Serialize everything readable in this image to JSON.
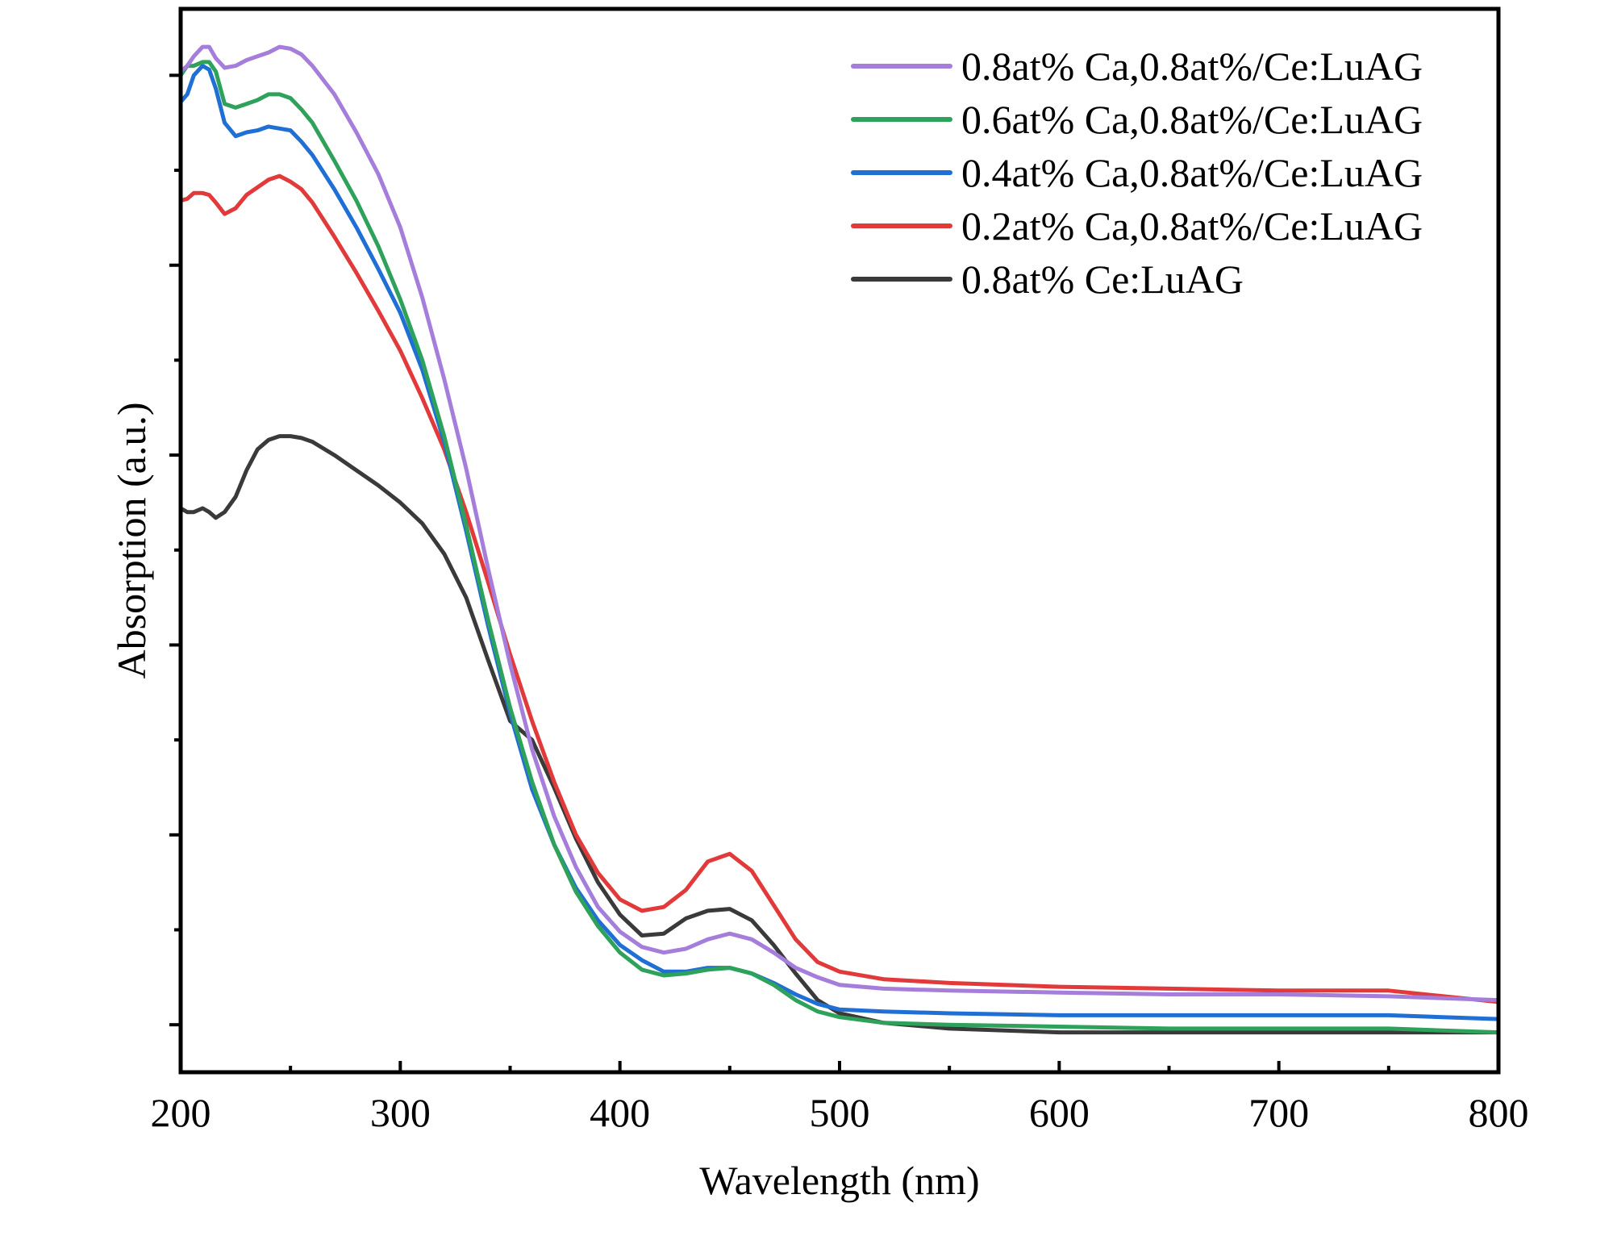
{
  "chart_data": {
    "type": "line",
    "title": "",
    "xlabel": "Wavelength (nm)",
    "ylabel": "Absorption (a.u.)",
    "xlim": [
      200,
      800
    ],
    "ylim": [
      -0.25,
      5.35
    ],
    "x_ticks": [
      200,
      300,
      400,
      500,
      600,
      700,
      800
    ],
    "x_tick_labels": [
      "200",
      "300",
      "400",
      "500",
      "600",
      "700",
      "800"
    ],
    "y_tick_labels_shown": false,
    "legend_position": "top-right",
    "series": [
      {
        "name": "0.8at% Ca,0.8at%/Ce:LuAG",
        "color": "#a57ddb",
        "points": [
          [
            200,
            5.02
          ],
          [
            203,
            5.05
          ],
          [
            206,
            5.1
          ],
          [
            210,
            5.15
          ],
          [
            213,
            5.15
          ],
          [
            216,
            5.09
          ],
          [
            220,
            5.04
          ],
          [
            225,
            5.05
          ],
          [
            230,
            5.08
          ],
          [
            235,
            5.1
          ],
          [
            240,
            5.12
          ],
          [
            245,
            5.15
          ],
          [
            250,
            5.14
          ],
          [
            255,
            5.11
          ],
          [
            260,
            5.05
          ],
          [
            270,
            4.9
          ],
          [
            280,
            4.7
          ],
          [
            290,
            4.48
          ],
          [
            300,
            4.2
          ],
          [
            310,
            3.83
          ],
          [
            320,
            3.4
          ],
          [
            330,
            2.93
          ],
          [
            340,
            2.4
          ],
          [
            350,
            1.9
          ],
          [
            360,
            1.45
          ],
          [
            370,
            1.1
          ],
          [
            380,
            0.83
          ],
          [
            390,
            0.62
          ],
          [
            400,
            0.49
          ],
          [
            410,
            0.41
          ],
          [
            420,
            0.38
          ],
          [
            430,
            0.4
          ],
          [
            440,
            0.45
          ],
          [
            450,
            0.48
          ],
          [
            460,
            0.45
          ],
          [
            470,
            0.38
          ],
          [
            480,
            0.3
          ],
          [
            490,
            0.25
          ],
          [
            500,
            0.21
          ],
          [
            520,
            0.19
          ],
          [
            550,
            0.18
          ],
          [
            600,
            0.17
          ],
          [
            650,
            0.16
          ],
          [
            700,
            0.16
          ],
          [
            750,
            0.15
          ],
          [
            800,
            0.13
          ]
        ]
      },
      {
        "name": "0.6at% Ca,0.8at%/Ce:LuAG",
        "color": "#2ea25a",
        "points": [
          [
            200,
            5.0
          ],
          [
            203,
            5.05
          ],
          [
            206,
            5.05
          ],
          [
            210,
            5.07
          ],
          [
            213,
            5.07
          ],
          [
            216,
            5.02
          ],
          [
            220,
            4.85
          ],
          [
            225,
            4.83
          ],
          [
            230,
            4.85
          ],
          [
            235,
            4.87
          ],
          [
            240,
            4.9
          ],
          [
            245,
            4.9
          ],
          [
            250,
            4.88
          ],
          [
            255,
            4.82
          ],
          [
            260,
            4.75
          ],
          [
            270,
            4.55
          ],
          [
            280,
            4.34
          ],
          [
            290,
            4.1
          ],
          [
            300,
            3.82
          ],
          [
            310,
            3.5
          ],
          [
            320,
            3.1
          ],
          [
            330,
            2.63
          ],
          [
            340,
            2.13
          ],
          [
            350,
            1.67
          ],
          [
            360,
            1.28
          ],
          [
            370,
            0.95
          ],
          [
            380,
            0.7
          ],
          [
            390,
            0.52
          ],
          [
            400,
            0.38
          ],
          [
            410,
            0.29
          ],
          [
            420,
            0.26
          ],
          [
            430,
            0.27
          ],
          [
            440,
            0.29
          ],
          [
            450,
            0.3
          ],
          [
            460,
            0.27
          ],
          [
            470,
            0.21
          ],
          [
            480,
            0.13
          ],
          [
            490,
            0.07
          ],
          [
            500,
            0.04
          ],
          [
            520,
            0.01
          ],
          [
            550,
            0.0
          ],
          [
            600,
            -0.01
          ],
          [
            650,
            -0.02
          ],
          [
            700,
            -0.02
          ],
          [
            750,
            -0.02
          ],
          [
            800,
            -0.04
          ]
        ]
      },
      {
        "name": "0.4at% Ca,0.8at%/Ce:LuAG",
        "color": "#1f6fd4",
        "points": [
          [
            200,
            4.86
          ],
          [
            203,
            4.9
          ],
          [
            206,
            5.0
          ],
          [
            210,
            5.05
          ],
          [
            213,
            5.03
          ],
          [
            216,
            4.93
          ],
          [
            220,
            4.75
          ],
          [
            225,
            4.68
          ],
          [
            230,
            4.7
          ],
          [
            235,
            4.71
          ],
          [
            240,
            4.73
          ],
          [
            245,
            4.72
          ],
          [
            250,
            4.71
          ],
          [
            255,
            4.65
          ],
          [
            260,
            4.58
          ],
          [
            270,
            4.4
          ],
          [
            280,
            4.2
          ],
          [
            290,
            3.98
          ],
          [
            300,
            3.75
          ],
          [
            310,
            3.45
          ],
          [
            320,
            3.07
          ],
          [
            330,
            2.6
          ],
          [
            340,
            2.1
          ],
          [
            350,
            1.64
          ],
          [
            360,
            1.24
          ],
          [
            370,
            0.95
          ],
          [
            380,
            0.72
          ],
          [
            390,
            0.55
          ],
          [
            400,
            0.42
          ],
          [
            410,
            0.34
          ],
          [
            420,
            0.28
          ],
          [
            430,
            0.28
          ],
          [
            440,
            0.3
          ],
          [
            450,
            0.3
          ],
          [
            460,
            0.27
          ],
          [
            470,
            0.22
          ],
          [
            480,
            0.16
          ],
          [
            490,
            0.11
          ],
          [
            500,
            0.08
          ],
          [
            520,
            0.07
          ],
          [
            550,
            0.06
          ],
          [
            600,
            0.05
          ],
          [
            650,
            0.05
          ],
          [
            700,
            0.05
          ],
          [
            750,
            0.05
          ],
          [
            800,
            0.03
          ]
        ]
      },
      {
        "name": "0.2at% Ca,0.8at%/Ce:LuAG",
        "color": "#e23a3a",
        "points": [
          [
            200,
            4.34
          ],
          [
            203,
            4.35
          ],
          [
            206,
            4.38
          ],
          [
            210,
            4.38
          ],
          [
            213,
            4.37
          ],
          [
            216,
            4.33
          ],
          [
            220,
            4.27
          ],
          [
            225,
            4.3
          ],
          [
            230,
            4.37
          ],
          [
            235,
            4.41
          ],
          [
            240,
            4.45
          ],
          [
            245,
            4.47
          ],
          [
            250,
            4.44
          ],
          [
            255,
            4.4
          ],
          [
            260,
            4.33
          ],
          [
            270,
            4.15
          ],
          [
            280,
            3.96
          ],
          [
            290,
            3.76
          ],
          [
            300,
            3.55
          ],
          [
            310,
            3.3
          ],
          [
            320,
            3.03
          ],
          [
            330,
            2.7
          ],
          [
            340,
            2.33
          ],
          [
            350,
            1.95
          ],
          [
            360,
            1.6
          ],
          [
            370,
            1.28
          ],
          [
            380,
            1.0
          ],
          [
            390,
            0.8
          ],
          [
            400,
            0.66
          ],
          [
            410,
            0.6
          ],
          [
            420,
            0.62
          ],
          [
            430,
            0.71
          ],
          [
            440,
            0.86
          ],
          [
            450,
            0.9
          ],
          [
            460,
            0.81
          ],
          [
            470,
            0.63
          ],
          [
            480,
            0.45
          ],
          [
            490,
            0.33
          ],
          [
            500,
            0.28
          ],
          [
            520,
            0.24
          ],
          [
            550,
            0.22
          ],
          [
            600,
            0.2
          ],
          [
            650,
            0.19
          ],
          [
            700,
            0.18
          ],
          [
            750,
            0.18
          ],
          [
            800,
            0.12
          ]
        ]
      },
      {
        "name": "0.8at% Ce:LuAG",
        "color": "#3a3a3a",
        "points": [
          [
            200,
            2.72
          ],
          [
            203,
            2.7
          ],
          [
            206,
            2.7
          ],
          [
            210,
            2.72
          ],
          [
            213,
            2.7
          ],
          [
            216,
            2.67
          ],
          [
            220,
            2.7
          ],
          [
            225,
            2.78
          ],
          [
            230,
            2.92
          ],
          [
            235,
            3.03
          ],
          [
            240,
            3.08
          ],
          [
            245,
            3.1
          ],
          [
            250,
            3.1
          ],
          [
            255,
            3.09
          ],
          [
            260,
            3.07
          ],
          [
            270,
            3.0
          ],
          [
            280,
            2.92
          ],
          [
            290,
            2.84
          ],
          [
            300,
            2.75
          ],
          [
            310,
            2.64
          ],
          [
            320,
            2.48
          ],
          [
            330,
            2.25
          ],
          [
            340,
            1.92
          ],
          [
            350,
            1.6
          ],
          [
            360,
            1.5
          ],
          [
            370,
            1.25
          ],
          [
            380,
            0.98
          ],
          [
            390,
            0.75
          ],
          [
            400,
            0.58
          ],
          [
            410,
            0.47
          ],
          [
            420,
            0.48
          ],
          [
            430,
            0.56
          ],
          [
            440,
            0.6
          ],
          [
            450,
            0.61
          ],
          [
            460,
            0.55
          ],
          [
            470,
            0.42
          ],
          [
            480,
            0.27
          ],
          [
            490,
            0.13
          ],
          [
            500,
            0.06
          ],
          [
            520,
            0.01
          ],
          [
            550,
            -0.02
          ],
          [
            600,
            -0.04
          ],
          [
            650,
            -0.04
          ],
          [
            700,
            -0.04
          ],
          [
            750,
            -0.04
          ],
          [
            800,
            -0.04
          ]
        ]
      }
    ]
  }
}
